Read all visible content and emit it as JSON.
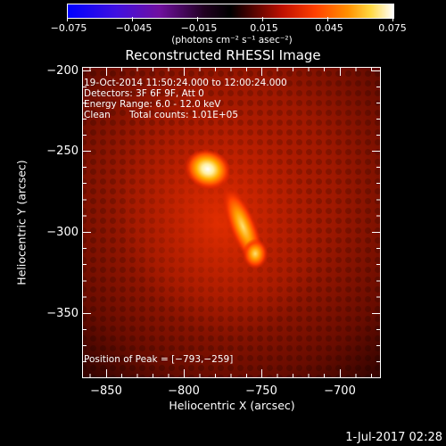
{
  "window": {
    "title": "Reconstructed RHESSI Image",
    "timestamp": "1-Jul-2017 02:28"
  },
  "colorbar": {
    "tick_labels": [
      "−0.075",
      "−0.045",
      "−0.015",
      "0.015",
      "0.045",
      "0.075"
    ],
    "unit_label": "(photons cm⁻² s⁻¹ asec⁻²)",
    "range": [
      -0.075,
      0.075
    ],
    "colors": [
      "#0000ff",
      "#6a00c8",
      "#000000",
      "#ff2000",
      "#ffb000",
      "#ffffff"
    ]
  },
  "annotations": {
    "time_range": "19-Oct-2014 11:50:24.000 to 12:00:24.000",
    "detectors": "Detectors: 3F 6F 9F, Att 0",
    "energy_range": "Energy Range: 6.0 - 12.0 keV",
    "method": "Clean",
    "total_counts": "Total counts: 1.01E+05",
    "peak_position": "Position of Peak = [−793,−259]"
  },
  "axes": {
    "xlabel": "Heliocentric X (arcsec)",
    "ylabel": "Heliocentric Y (arcsec)",
    "xticks": [
      "−850",
      "−800",
      "−750",
      "−700"
    ],
    "yticks": [
      "−200",
      "−250",
      "−300",
      "−350"
    ],
    "xlim": [
      -875,
      -680
    ],
    "ylim": [
      -390,
      -195
    ]
  },
  "chart_data": {
    "type": "heatmap",
    "title": "Reconstructed RHESSI Image",
    "xlabel": "Heliocentric X (arcsec)",
    "ylabel": "Heliocentric Y (arcsec)",
    "xlim": [
      -875,
      -680
    ],
    "ylim": [
      -390,
      -195
    ],
    "xticks": [
      -850,
      -800,
      -750,
      -700
    ],
    "yticks": [
      -200,
      -250,
      -300,
      -350
    ],
    "colorbar_range": [
      -0.075,
      0.075
    ],
    "colorbar_ticks": [
      -0.075,
      -0.045,
      -0.015,
      0.015,
      0.045,
      0.075
    ],
    "peak": [
      -793,
      -259
    ],
    "sources": [
      {
        "x": -793,
        "y": -259,
        "intensity": 0.075
      },
      {
        "x": -770,
        "y": -295,
        "intensity": 0.05
      },
      {
        "x": -762,
        "y": -312,
        "intensity": 0.06
      }
    ]
  }
}
